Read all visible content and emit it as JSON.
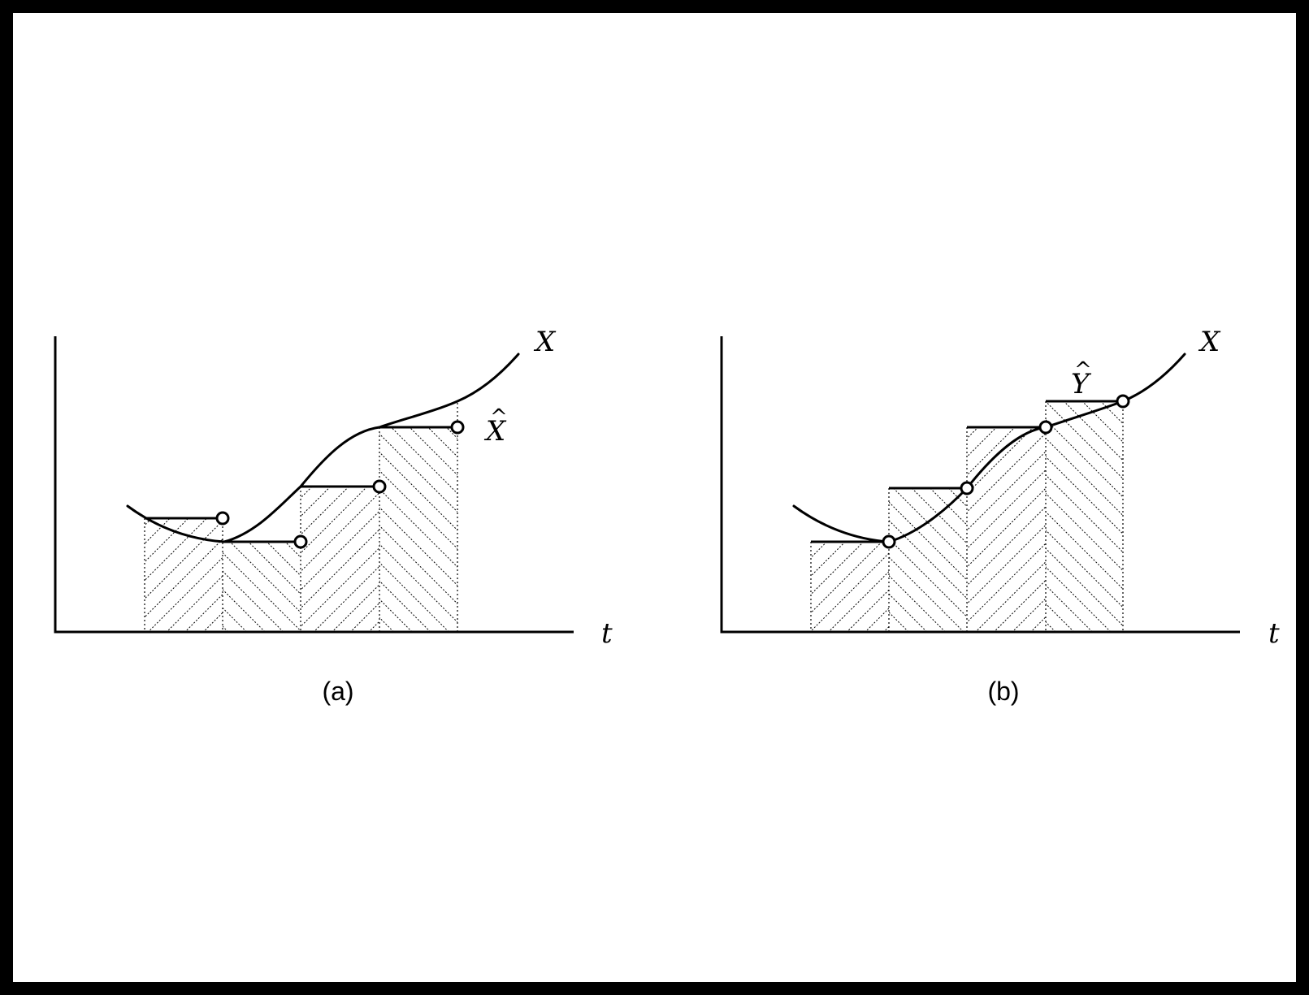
{
  "panels": [
    {
      "id": "a",
      "caption": "(a)",
      "axis_label": "t",
      "curve_label": "X",
      "approx_label": "X",
      "approx_hat": "^"
    },
    {
      "id": "b",
      "caption": "(b)",
      "axis_label": "t",
      "curve_label": "X",
      "approx_label": "Y",
      "approx_hat": "^"
    }
  ]
}
